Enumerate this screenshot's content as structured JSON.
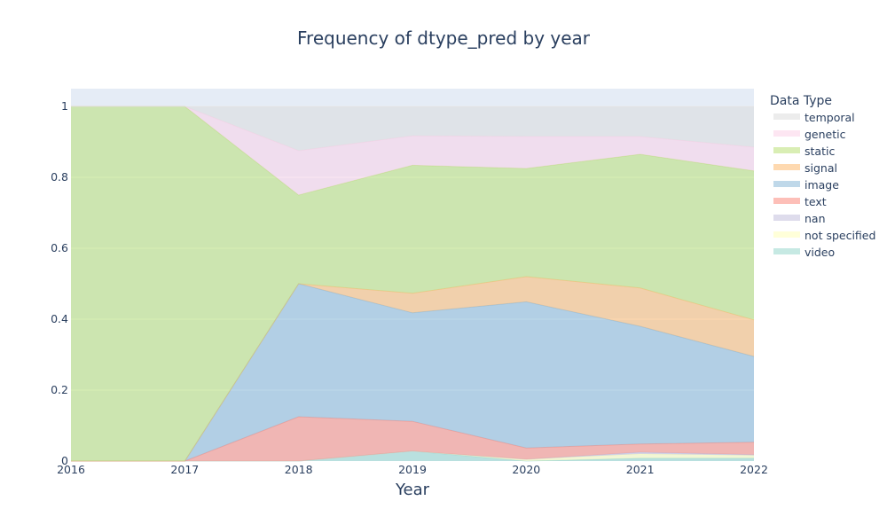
{
  "chart_data": {
    "type": "area",
    "title": "Frequency of dtype_pred by year",
    "xlabel": "Year",
    "ylabel": "",
    "x": [
      2016,
      2017,
      2018,
      2019,
      2020,
      2021,
      2022
    ],
    "xlim": [
      2016,
      2022
    ],
    "ylim": [
      0,
      1.05
    ],
    "y_ticks": [
      0,
      0.2,
      0.4,
      0.6,
      0.8,
      1
    ],
    "y_tick_labels": [
      "0",
      "0.2",
      "0.4",
      "0.6",
      "0.8",
      "1"
    ],
    "x_tick_labels": [
      "2016",
      "2017",
      "2018",
      "2019",
      "2020",
      "2021",
      "2022"
    ],
    "stacked": true,
    "grid": true,
    "legend_title": "Data Type",
    "legend_position": "right",
    "series": [
      {
        "name": "video",
        "color": "#8dd3c7",
        "values": [
          0,
          0,
          0,
          0.028,
          0,
          0.008,
          0.008
        ]
      },
      {
        "name": "not specified",
        "color": "#ffffb3",
        "values": [
          0,
          0,
          0,
          0,
          0.005,
          0.012,
          0.008
        ]
      },
      {
        "name": "nan",
        "color": "#bebada",
        "values": [
          0,
          0,
          0,
          0,
          0,
          0.005,
          0.002
        ]
      },
      {
        "name": "text",
        "color": "#fb8072",
        "values": [
          0,
          0,
          0.125,
          0.084,
          0.032,
          0.023,
          0.035
        ]
      },
      {
        "name": "image",
        "color": "#80b1d3",
        "values": [
          0,
          0,
          0.375,
          0.306,
          0.412,
          0.332,
          0.242
        ]
      },
      {
        "name": "signal",
        "color": "#fdb462",
        "values": [
          0,
          0,
          0,
          0.055,
          0.071,
          0.108,
          0.103
        ]
      },
      {
        "name": "static",
        "color": "#b3de69",
        "values": [
          1,
          1,
          0.25,
          0.361,
          0.305,
          0.377,
          0.42
        ]
      },
      {
        "name": "genetic",
        "color": "#fccde5",
        "values": [
          0,
          0,
          0.125,
          0.083,
          0.09,
          0.05,
          0.067
        ]
      },
      {
        "name": "temporal",
        "color": "#d9d9d9",
        "values": [
          0,
          0,
          0.125,
          0.083,
          0.085,
          0.085,
          0.115
        ]
      }
    ]
  }
}
